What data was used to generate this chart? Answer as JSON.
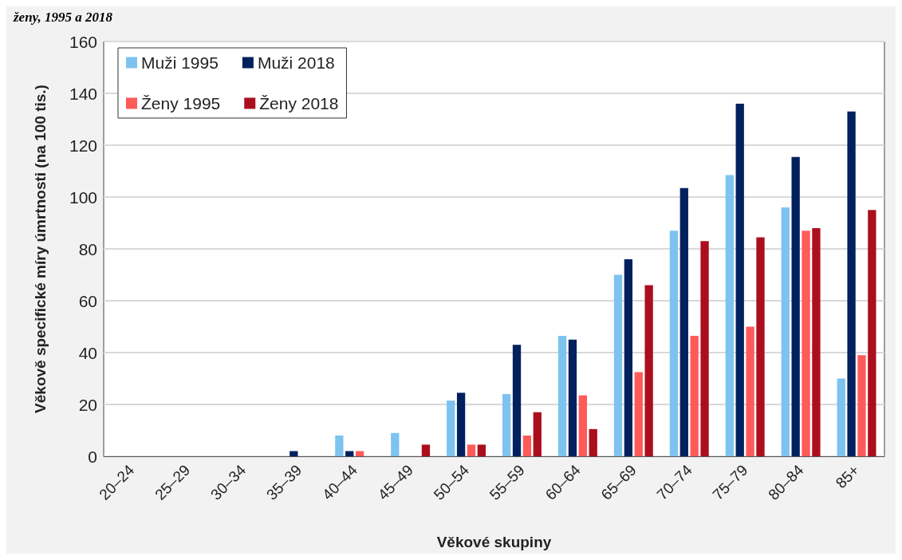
{
  "chart_data": {
    "type": "bar",
    "title": "ženy, 1995 a 2018",
    "xlabel": "Věkové skupiny",
    "ylabel": "Věkově specifické míry úmrtnosti (na 100 tis.)",
    "categories": [
      "20–24",
      "25–29",
      "30–34",
      "35–39",
      "40–44",
      "45–49",
      "50–54",
      "55–59",
      "60–64",
      "65–69",
      "70–74",
      "75–79",
      "80–84",
      "85+"
    ],
    "series": [
      {
        "name": "Muži 1995",
        "color": "#7dc3f0",
        "values": [
          0,
          0,
          0,
          0,
          8,
          9,
          21.5,
          24,
          46.5,
          70,
          87,
          108.5,
          96,
          30
        ]
      },
      {
        "name": "Muži 2018",
        "color": "#00215e",
        "values": [
          0,
          0,
          0,
          2,
          2,
          0,
          24.5,
          43,
          45,
          76,
          103.5,
          136,
          115.5,
          133
        ]
      },
      {
        "name": "Ženy 1995",
        "color": "#ff5a5a",
        "values": [
          0,
          0,
          0,
          0,
          2,
          0,
          4.5,
          8,
          23.5,
          32.5,
          46.5,
          50,
          87,
          39
        ]
      },
      {
        "name": "Ženy 2018",
        "color": "#ab0f1e",
        "values": [
          0,
          0,
          0,
          0,
          0,
          4.5,
          4.5,
          17,
          10.5,
          66,
          83,
          84.5,
          88,
          95
        ]
      }
    ],
    "ylim": [
      0,
      160
    ],
    "yticks": [
      0,
      20,
      40,
      60,
      80,
      100,
      120,
      140,
      160
    ],
    "grid": "y",
    "legend": "top left"
  }
}
